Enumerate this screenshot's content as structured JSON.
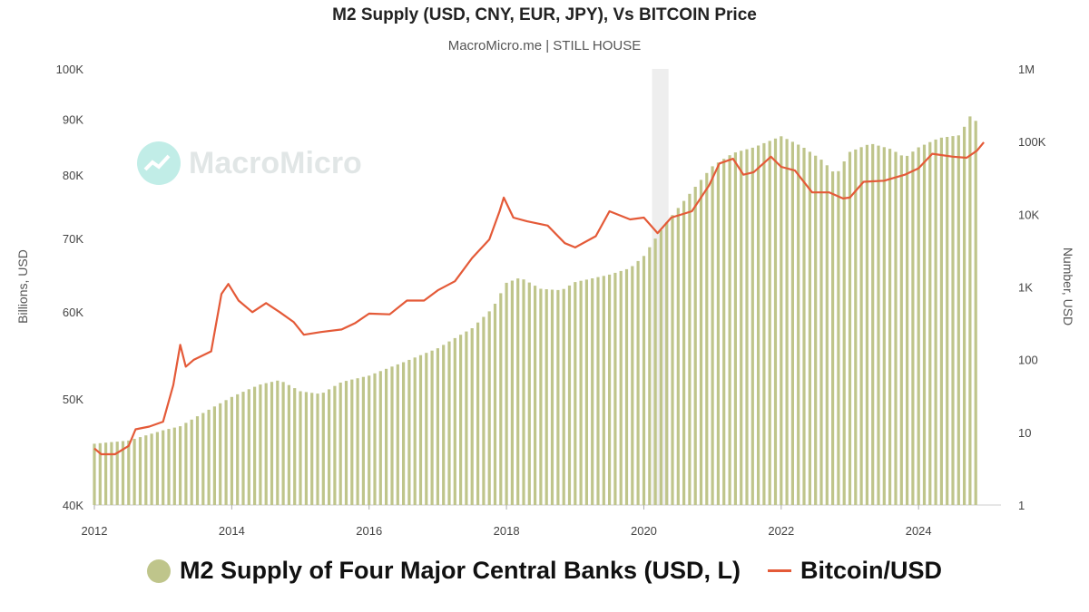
{
  "title": "M2 Supply (USD, CNY, EUR, JPY), Vs BITCOIN Price",
  "subtitle": "MacroMicro.me | STILL HOUSE",
  "watermark": "MacroMicro",
  "colors": {
    "m2": "#bfc58b",
    "bitcoin": "#e45a38",
    "recession": "#eeeeee"
  },
  "chart_data": {
    "type": "bar",
    "title": "M2 Supply (USD, CNY, EUR, JPY), Vs BITCOIN Price",
    "subtitle": "MacroMicro.me | STILL HOUSE",
    "x_ticks": [
      "2012",
      "2014",
      "2016",
      "2018",
      "2020",
      "2022",
      "2024"
    ],
    "x_range": [
      2012,
      2025.2
    ],
    "y_left": {
      "label": "Billions, USD",
      "scale": "log",
      "range": [
        40000,
        100000
      ],
      "ticks": [
        40000,
        50000,
        60000,
        70000,
        80000,
        90000,
        100000
      ],
      "tick_labels": [
        "40K",
        "50K",
        "60K",
        "70K",
        "80K",
        "90K",
        "100K"
      ]
    },
    "y_right": {
      "label": "Number, USD",
      "scale": "log",
      "range": [
        1,
        1000000
      ],
      "ticks": [
        1,
        10,
        100,
        1000,
        10000,
        100000,
        1000000
      ],
      "tick_labels": [
        "1",
        "10",
        "100",
        "1K",
        "10K",
        "100K",
        "1M"
      ]
    },
    "shaded_region": [
      2020.12,
      2020.36
    ],
    "series": [
      {
        "name": "M2 Supply of Four Major Central Banks (USD, L)",
        "axis": "left",
        "kind": "bar",
        "points": [
          [
            2012.0,
            45500
          ],
          [
            2012.5,
            45800
          ],
          [
            2013.0,
            46800
          ],
          [
            2013.25,
            47200
          ],
          [
            2013.5,
            48200
          ],
          [
            2014.0,
            50200
          ],
          [
            2014.4,
            51500
          ],
          [
            2014.7,
            52000
          ],
          [
            2015.0,
            50800
          ],
          [
            2015.3,
            50500
          ],
          [
            2015.6,
            51800
          ],
          [
            2016.0,
            52500
          ],
          [
            2016.5,
            54000
          ],
          [
            2017.0,
            55600
          ],
          [
            2017.5,
            58000
          ],
          [
            2017.8,
            60500
          ],
          [
            2018.0,
            63800
          ],
          [
            2018.2,
            64500
          ],
          [
            2018.5,
            63000
          ],
          [
            2018.8,
            62800
          ],
          [
            2019.0,
            63900
          ],
          [
            2019.5,
            64900
          ],
          [
            2019.8,
            65800
          ],
          [
            2020.0,
            67500
          ],
          [
            2020.3,
            72000
          ],
          [
            2020.6,
            76000
          ],
          [
            2021.0,
            81500
          ],
          [
            2021.3,
            83800
          ],
          [
            2021.6,
            84800
          ],
          [
            2022.0,
            86800
          ],
          [
            2022.3,
            85000
          ],
          [
            2022.6,
            82500
          ],
          [
            2022.8,
            80000
          ],
          [
            2023.0,
            84000
          ],
          [
            2023.3,
            85500
          ],
          [
            2023.6,
            84500
          ],
          [
            2023.8,
            83000
          ],
          [
            2024.0,
            84800
          ],
          [
            2024.3,
            86500
          ],
          [
            2024.6,
            87000
          ],
          [
            2024.75,
            90500
          ],
          [
            2024.85,
            89500
          ]
        ]
      },
      {
        "name": "Bitcoin/USD",
        "axis": "right",
        "kind": "line",
        "points": [
          [
            2012.0,
            6
          ],
          [
            2012.1,
            5
          ],
          [
            2012.3,
            5
          ],
          [
            2012.5,
            6.5
          ],
          [
            2012.6,
            11
          ],
          [
            2012.8,
            12
          ],
          [
            2013.0,
            14
          ],
          [
            2013.15,
            45
          ],
          [
            2013.25,
            160
          ],
          [
            2013.33,
            80
          ],
          [
            2013.45,
            100
          ],
          [
            2013.7,
            130
          ],
          [
            2013.85,
            800
          ],
          [
            2013.95,
            1100
          ],
          [
            2014.1,
            650
          ],
          [
            2014.3,
            450
          ],
          [
            2014.5,
            600
          ],
          [
            2014.7,
            450
          ],
          [
            2014.9,
            330
          ],
          [
            2015.05,
            220
          ],
          [
            2015.3,
            240
          ],
          [
            2015.6,
            260
          ],
          [
            2015.8,
            320
          ],
          [
            2016.0,
            430
          ],
          [
            2016.3,
            420
          ],
          [
            2016.55,
            650
          ],
          [
            2016.8,
            650
          ],
          [
            2017.0,
            900
          ],
          [
            2017.25,
            1200
          ],
          [
            2017.5,
            2500
          ],
          [
            2017.75,
            4500
          ],
          [
            2017.9,
            11000
          ],
          [
            2017.96,
            17000
          ],
          [
            2018.1,
            9000
          ],
          [
            2018.3,
            8000
          ],
          [
            2018.6,
            7000
          ],
          [
            2018.85,
            4000
          ],
          [
            2019.0,
            3500
          ],
          [
            2019.3,
            5000
          ],
          [
            2019.5,
            11000
          ],
          [
            2019.8,
            8500
          ],
          [
            2020.0,
            9000
          ],
          [
            2020.2,
            5500
          ],
          [
            2020.4,
            9000
          ],
          [
            2020.7,
            11000
          ],
          [
            2020.95,
            25000
          ],
          [
            2021.1,
            50000
          ],
          [
            2021.3,
            58000
          ],
          [
            2021.45,
            35000
          ],
          [
            2021.6,
            38000
          ],
          [
            2021.85,
            62000
          ],
          [
            2022.0,
            45000
          ],
          [
            2022.2,
            40000
          ],
          [
            2022.45,
            20000
          ],
          [
            2022.7,
            20000
          ],
          [
            2022.9,
            16500
          ],
          [
            2023.0,
            17000
          ],
          [
            2023.2,
            28000
          ],
          [
            2023.5,
            29000
          ],
          [
            2023.8,
            35000
          ],
          [
            2024.0,
            43000
          ],
          [
            2024.2,
            68000
          ],
          [
            2024.5,
            62000
          ],
          [
            2024.7,
            60000
          ],
          [
            2024.85,
            75000
          ],
          [
            2024.95,
            98000
          ]
        ]
      }
    ],
    "legend_position": "bottom-center",
    "grid": false
  }
}
